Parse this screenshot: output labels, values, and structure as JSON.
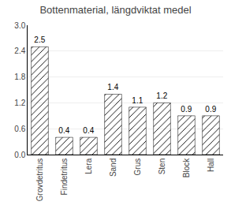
{
  "chart_data": {
    "type": "bar",
    "title": "Bottenmaterial, längdviktat medel",
    "categories": [
      "Grovdetritus",
      "Findetritus",
      "Lera",
      "Sand",
      "Grus",
      "Sten",
      "Block",
      "Hall"
    ],
    "values": [
      2.5,
      0.4,
      0.4,
      1.4,
      1.1,
      1.2,
      0.9,
      0.9
    ],
    "color": "#d8d8d8",
    "ylim": [
      0,
      3
    ],
    "yticks": [
      {
        "value": 0,
        "label": "0.0"
      },
      0.6,
      1.2,
      1.8,
      2.4,
      {
        "value": 3.0,
        "label": "3.0"
      }
    ],
    "grid": true,
    "data_labels": true
  }
}
